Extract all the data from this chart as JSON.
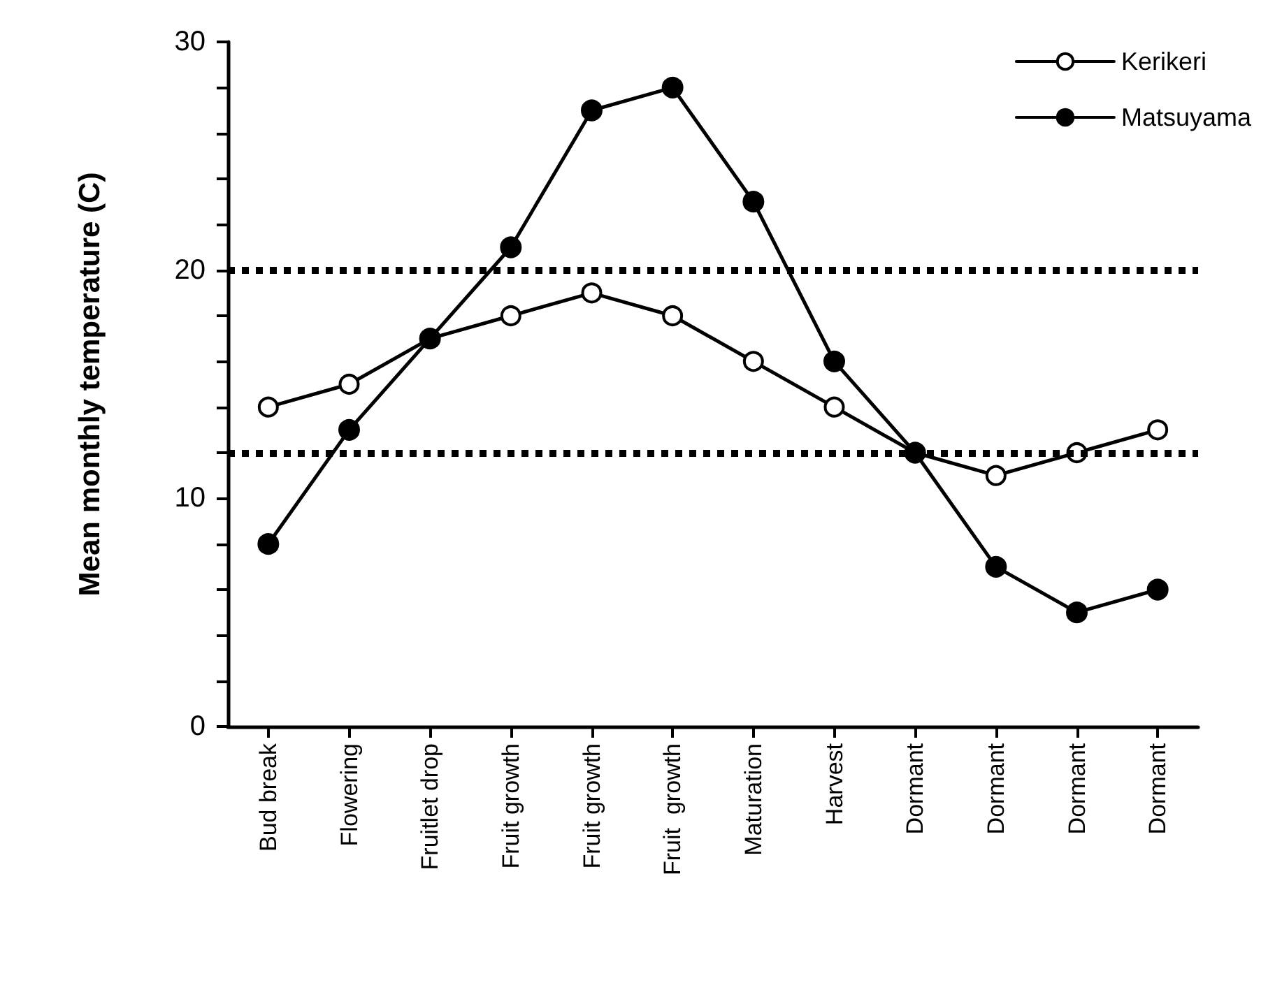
{
  "chart_data": {
    "type": "line",
    "ylabel": "Mean monthly temperature (C)",
    "categories": [
      "Bud break",
      "Flowering",
      "Fruitlet drop",
      "Fruit growth",
      "Fruit growth",
      "Fruit  growth",
      "Maturation",
      "Harvest",
      "Dormant",
      "Dormant",
      "Dormant",
      "Dormant"
    ],
    "series": [
      {
        "name": "Kerikeri",
        "color": "#000000",
        "values": [
          14,
          15,
          17,
          18,
          19,
          18,
          16,
          14,
          12,
          11,
          12,
          13
        ]
      },
      {
        "name": "Matsuyama",
        "color": "#000000",
        "values": [
          8,
          13,
          17,
          21,
          27,
          28,
          23,
          16,
          12,
          7,
          5,
          6
        ]
      }
    ],
    "ylim": [
      0,
      30
    ],
    "yticks": [
      0,
      {
        "value": 2,
        "label": null
      },
      {
        "value": 4,
        "label": null
      },
      {
        "value": 6,
        "label": null
      },
      {
        "value": 8,
        "label": null
      },
      10,
      {
        "value": 12,
        "label": null
      },
      {
        "value": 14,
        "label": null
      },
      {
        "value": 16,
        "label": null
      },
      {
        "value": 18,
        "label": null
      },
      20,
      {
        "value": 22,
        "label": null
      },
      {
        "value": 24,
        "label": null
      },
      {
        "value": 26,
        "label": null
      },
      {
        "value": 28,
        "label": null
      },
      30
    ],
    "ref_lines": [
      {
        "axis": "y",
        "value": 20,
        "line_style": "dotted",
        "color": "#000000"
      },
      {
        "axis": "y",
        "value": 12,
        "line_style": "dotted",
        "color": "#000000"
      }
    ],
    "grid": false,
    "legend": "top right",
    "marker": "circle",
    "line_style": "solid"
  }
}
